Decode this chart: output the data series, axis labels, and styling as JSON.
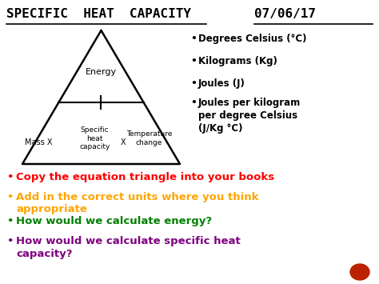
{
  "title_left": "SPECIFIC  HEAT  CAPACITY",
  "title_right": "07/06/17",
  "background_color": "#ffffff",
  "title_color": "#000000",
  "title_fontsize": 11.5,
  "triangle_color": "#000000",
  "triangle_linewidth": 1.8,
  "bullet_items": [
    {
      "text": "Degrees Celsius (°C)",
      "color": "#000000"
    },
    {
      "text": "Kilograms (Kg)",
      "color": "#000000"
    },
    {
      "text": "Joules (J)",
      "color": "#000000"
    },
    {
      "text": "Joules per kilogram\nper degree Celsius\n(J/Kg °C)",
      "color": "#000000"
    }
  ],
  "bottom_bullets": [
    {
      "text": "Copy the equation triangle into your books",
      "color": "#ff0000"
    },
    {
      "text": "Add in the correct units where you think\nappropriate",
      "color": "#ffa500"
    },
    {
      "text": "How would we calculate energy?",
      "color": "#008000"
    },
    {
      "text": "How would we calculate specific heat\ncapacity?",
      "color": "#800080"
    }
  ],
  "triangle_labels": {
    "top": "Energy",
    "bottom_left": "Mass X",
    "bottom_center": "Specific\nheat\ncapacity",
    "bottom_x": "X",
    "bottom_right": "Temperature\nchange"
  },
  "red_circle_color": "#bb2200"
}
